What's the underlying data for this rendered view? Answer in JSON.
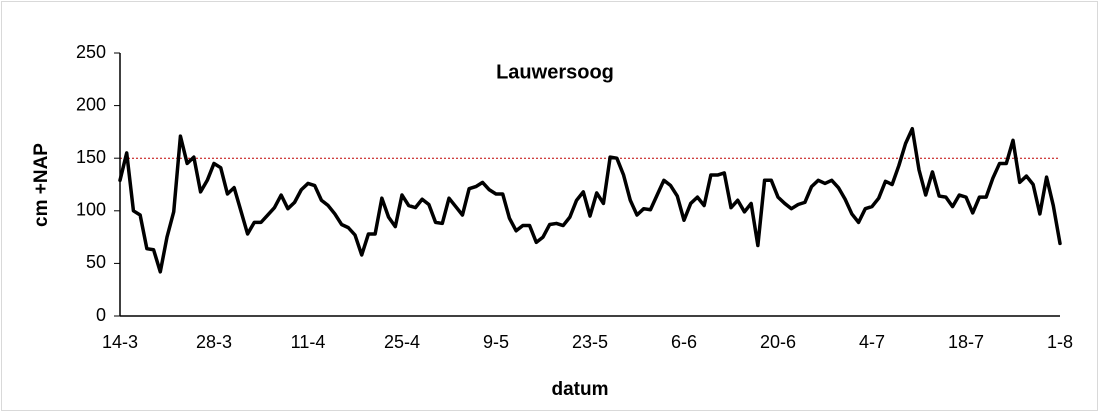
{
  "chart_data": {
    "type": "line",
    "title": "Lauwersoog",
    "x_label": "datum",
    "y_label": "cm +NAP",
    "categories": [
      "14-3",
      null,
      null,
      null,
      null,
      null,
      null,
      null,
      null,
      null,
      null,
      null,
      null,
      null,
      "28-3",
      null,
      null,
      null,
      null,
      null,
      null,
      null,
      null,
      null,
      null,
      null,
      null,
      null,
      "11-4",
      null,
      null,
      null,
      null,
      null,
      null,
      null,
      null,
      null,
      null,
      null,
      null,
      null,
      "25-4",
      null,
      null,
      null,
      null,
      null,
      null,
      null,
      null,
      null,
      null,
      null,
      null,
      null,
      "9-5",
      null,
      null,
      null,
      null,
      null,
      null,
      null,
      null,
      null,
      null,
      null,
      null,
      null,
      "23-5",
      null,
      null,
      null,
      null,
      null,
      null,
      null,
      null,
      null,
      null,
      null,
      null,
      null,
      "6-6",
      null,
      null,
      null,
      null,
      null,
      null,
      null,
      null,
      null,
      null,
      null,
      null,
      null,
      "20-6",
      null,
      null,
      null,
      null,
      null,
      null,
      null,
      null,
      null,
      null,
      null,
      null,
      null,
      "4-7",
      null,
      null,
      null,
      null,
      null,
      null,
      null,
      null,
      null,
      null,
      null,
      null,
      null,
      "18-7",
      null,
      null,
      null,
      null,
      null,
      null,
      null,
      null,
      null,
      null,
      null,
      null,
      null,
      "1-8"
    ],
    "values": [
      129,
      155,
      100,
      96,
      64,
      63,
      42,
      75,
      99,
      171,
      145,
      151,
      118,
      129,
      145,
      141,
      116,
      122,
      100,
      78,
      89,
      89,
      96,
      103,
      115,
      102,
      108,
      120,
      126,
      124,
      110,
      105,
      97,
      87,
      84,
      77,
      58,
      78,
      78,
      112,
      94,
      85,
      115,
      105,
      103,
      111,
      106,
      89,
      88,
      112,
      104,
      96,
      121,
      123,
      127,
      120,
      116,
      116,
      93,
      81,
      86,
      86,
      70,
      75,
      87,
      88,
      86,
      94,
      110,
      118,
      95,
      117,
      107,
      151,
      150,
      134,
      110,
      96,
      102,
      101,
      115,
      129,
      124,
      114,
      91,
      107,
      113,
      105,
      134,
      134,
      136,
      103,
      110,
      99,
      107,
      67,
      129,
      129,
      113,
      107,
      102,
      106,
      108,
      123,
      129,
      126,
      129,
      122,
      111,
      97,
      89,
      102,
      104,
      112,
      128,
      125,
      143,
      164,
      178,
      139,
      115,
      137,
      114,
      113,
      104,
      115,
      113,
      98,
      113,
      113,
      131,
      145,
      145,
      167,
      127,
      133,
      125,
      97,
      132,
      105,
      69
    ],
    "color": "#000000",
    "reference_line": 150,
    "reference_color": "#c00000",
    "ylim": [
      0,
      250
    ],
    "yticks": [
      0,
      50,
      100,
      150,
      200,
      250
    ]
  }
}
